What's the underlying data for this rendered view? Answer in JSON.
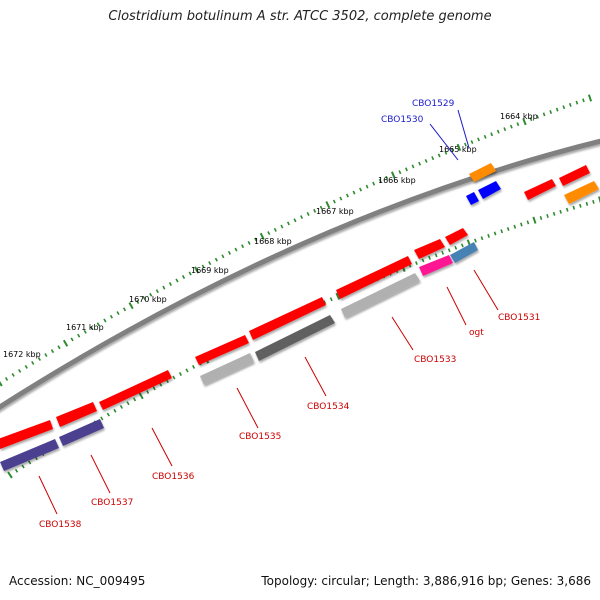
{
  "header": {
    "title": "Clostridium botulinum A str. ATCC 3502, complete genome"
  },
  "footer": {
    "accession": "Accession: NC_009495",
    "topology": "Topology: circular; Length: 3,886,916 bp; Genes: 3,686"
  },
  "colors": {
    "backbone": "#808080",
    "tick": "#2e8b2e",
    "ruler_label": "#000000",
    "forward_gene_label": "#1a1acc",
    "reverse_gene_label": "#cc0000"
  },
  "ruler": {
    "unit": "kbp",
    "labels": [
      "1664 kbp",
      "1665 kbp",
      "1666 kbp",
      "1667 kbp",
      "1668 kbp",
      "1669 kbp",
      "1670 kbp",
      "1671 kbp",
      "1672 kbp"
    ]
  },
  "gene_labels": {
    "forward": [
      "CBO1529",
      "CBO1530"
    ],
    "reverse": [
      "CBO1531",
      "ogt",
      "CBO1533",
      "CBO1534",
      "CBO1535",
      "CBO1536",
      "CBO1537",
      "CBO1538"
    ]
  },
  "features": {
    "forward_strand": [
      {
        "icon": "gene-arrow",
        "color": "#ff0000"
      },
      {
        "icon": "gene-arrow",
        "color": "#ff0000"
      },
      {
        "icon": "gene-arrow",
        "color": "#ff0000"
      },
      {
        "icon": "gene-arrow",
        "color": "#ff0000"
      },
      {
        "icon": "gene-arrow",
        "color": "#ff0000"
      },
      {
        "icon": "gene-arrow",
        "color": "#ff0000"
      },
      {
        "icon": "gene-arrow",
        "color": "#ff0000"
      },
      {
        "icon": "gene-arrow",
        "color": "#ff0000"
      },
      {
        "icon": "gene-arrow",
        "color": "#ff0000"
      },
      {
        "icon": "gene-arrow",
        "color": "#ff0000"
      },
      {
        "icon": "gene-arrow",
        "color": "#ff0000"
      },
      {
        "icon": "gene-arrow",
        "color": "#ff0000"
      },
      {
        "icon": "gene-arrow",
        "color": "#ff0000"
      },
      {
        "icon": "gene-arrow",
        "color": "#0000ff"
      },
      {
        "icon": "gene-arrow",
        "color": "#0000ff"
      }
    ],
    "reverse_strand": [
      {
        "icon": "gene-arrow",
        "color": "#ff8c00"
      },
      {
        "icon": "gene-arrow",
        "color": "#ff8c00"
      },
      {
        "icon": "gene-arrow",
        "color": "#4682b4"
      },
      {
        "icon": "gene-arrow",
        "color": "#ff1493"
      },
      {
        "icon": "gene-arrow",
        "color": "#b0b0b0"
      },
      {
        "icon": "gene-arrow",
        "color": "#606060"
      },
      {
        "icon": "gene-arrow",
        "color": "#b0b0b0"
      },
      {
        "icon": "gene-arrow",
        "color": "#4b3f8f"
      },
      {
        "icon": "gene-arrow",
        "color": "#4b3f8f"
      }
    ]
  }
}
